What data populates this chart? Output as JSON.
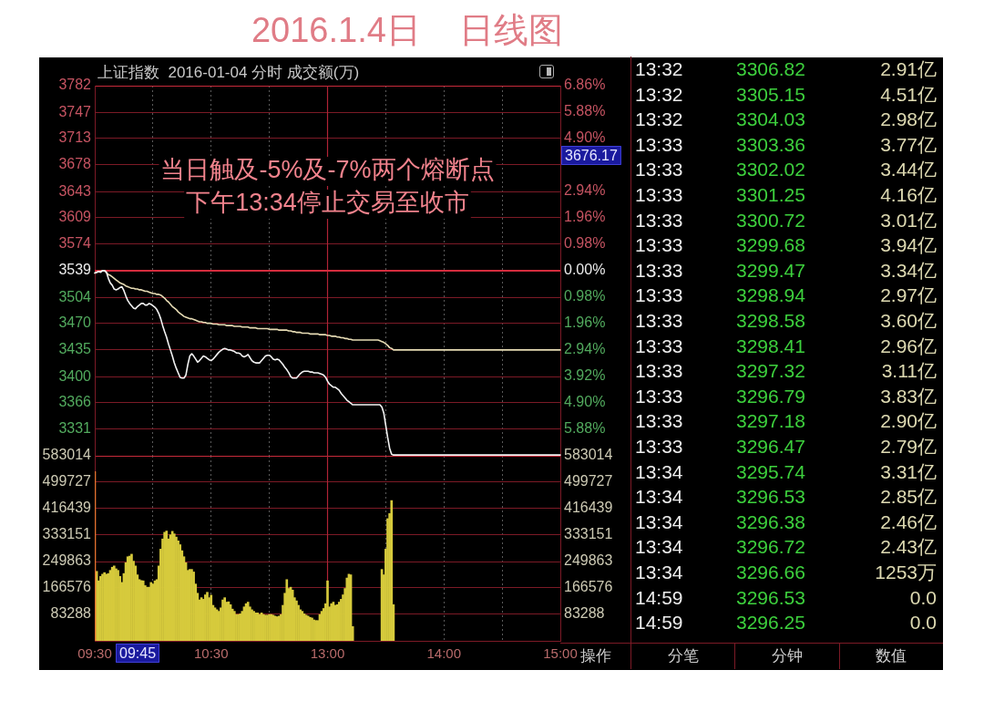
{
  "chart_data": [
    {
      "type": "line",
      "title": "2016.1.4日    日线图",
      "subtitle": "上证指数  2016-01-04 分时 成交额(万)",
      "categories": [
        "09:30",
        null,
        null,
        null,
        null,
        null,
        null,
        null,
        null,
        null,
        null,
        null,
        null,
        null,
        null,
        null,
        null,
        null,
        null,
        null,
        null,
        null,
        null,
        null,
        null,
        null,
        null,
        null,
        null,
        null,
        null,
        null,
        null,
        null,
        null,
        null,
        null,
        null,
        null,
        null,
        null,
        null,
        null,
        null,
        null,
        null,
        null,
        null,
        null,
        null,
        null,
        null,
        null,
        null,
        null,
        null,
        null,
        null,
        null,
        null,
        "10:30",
        null,
        null,
        null,
        null,
        null,
        null,
        null,
        null,
        null,
        null,
        null,
        null,
        null,
        null,
        null,
        null,
        null,
        null,
        null,
        null,
        null,
        null,
        null,
        null,
        null,
        null,
        null,
        null,
        null,
        null,
        null,
        null,
        null,
        null,
        null,
        null,
        null,
        null,
        null,
        null,
        null,
        null,
        null,
        null,
        null,
        null,
        null,
        null,
        null,
        null,
        null,
        null,
        null,
        null,
        null,
        null,
        null,
        null,
        null,
        "13:00",
        null,
        null,
        null,
        null,
        null,
        null,
        null,
        null,
        null,
        null,
        null,
        null,
        null,
        null,
        null,
        null,
        null,
        null,
        null,
        null,
        null,
        null,
        null,
        null,
        null,
        null,
        null,
        null,
        null,
        null,
        null,
        null,
        null,
        null,
        null,
        null,
        null,
        null,
        null,
        null,
        null,
        null,
        null,
        null,
        null,
        null,
        null,
        null,
        null,
        null,
        null,
        null,
        null,
        null,
        null,
        null,
        null,
        null,
        null,
        "14:00",
        null,
        null,
        null,
        null,
        null,
        null,
        null,
        null,
        null,
        null,
        null,
        null,
        null,
        null,
        null,
        null,
        null,
        null,
        null,
        null,
        null,
        null,
        null,
        null,
        null,
        null,
        null,
        null,
        null,
        null,
        null,
        null,
        null,
        null,
        null,
        null,
        null,
        null,
        null,
        null,
        null,
        null,
        null,
        null,
        null,
        null,
        null,
        null,
        null,
        null,
        null,
        null,
        null,
        null,
        null,
        null,
        null,
        null,
        null,
        "15:00"
      ],
      "ylim": [
        3296,
        3782
      ],
      "yticks": [
        3331,
        3366,
        3400,
        3435,
        3470,
        3504,
        3539,
        3574,
        3609,
        3643,
        3678,
        3713,
        3747,
        3782
      ],
      "y2lim": [
        -6.87,
        6.86
      ],
      "y2ticks": [
        {
          "value": -5.88,
          "label": "5.88%"
        },
        {
          "value": -4.9,
          "label": "4.90%"
        },
        {
          "value": -3.92,
          "label": "3.92%"
        },
        {
          "value": -2.94,
          "label": "2.94%"
        },
        {
          "value": -1.96,
          "label": "1.96%"
        },
        {
          "value": -0.98,
          "label": "0.98%"
        },
        {
          "value": 0,
          "label": "0.00%"
        },
        {
          "value": 0.98,
          "label": "0.98%"
        },
        {
          "value": 1.96,
          "label": "1.96%"
        },
        {
          "value": 2.94,
          "label": "2.94%"
        },
        {
          "value": 3.92,
          "label": null
        },
        {
          "value": 4.9,
          "label": "4.90%"
        },
        {
          "value": 5.88,
          "label": "5.88%"
        },
        {
          "value": 6.86,
          "label": "6.86%"
        }
      ],
      "series": [
        {
          "color": "#f2f2f2",
          "values": [
            3536,
            3537,
            3538,
            3537,
            3539,
            3539,
            3537,
            3529,
            3523,
            3520,
            3515,
            3514,
            3515,
            3517,
            3518,
            3513,
            3506,
            3500,
            3496,
            3493,
            3490,
            3489,
            3492,
            3494,
            3496,
            3496,
            3494,
            3494,
            3496,
            3495,
            3493,
            3491,
            3488,
            3483,
            3476,
            3467,
            3459,
            3452,
            3443,
            3435,
            3427,
            3418,
            3411,
            3405,
            3399,
            3398,
            3398,
            3402,
            3416,
            3427,
            3430,
            3427,
            3423,
            3419,
            3421,
            3424,
            3427,
            3426,
            3424,
            3422,
            3421,
            3423,
            3426,
            3429,
            3432,
            3434,
            3436,
            3437,
            3436,
            3435,
            3435,
            3434,
            3433,
            3431,
            3431,
            3430,
            3427,
            3426,
            3427,
            3429,
            3425,
            3421,
            3419,
            3418,
            3418,
            3418,
            3421,
            3424,
            3427,
            3428,
            3428,
            3426,
            3423,
            3422,
            3423,
            3422,
            3419,
            3416,
            3412,
            3409,
            3405,
            3400,
            3398,
            3398,
            3398,
            3401,
            3404,
            3406,
            3407,
            3407,
            3407,
            3406,
            3406,
            3405,
            3405,
            3405,
            3404,
            3403,
            3402,
            3399,
            3394,
            3390,
            3388,
            3386,
            3386,
            3384,
            3382,
            3378,
            3375,
            3372,
            3369,
            3367,
            3365,
            3363,
            3363,
            3363,
            3363,
            3363,
            3363,
            3363,
            3363,
            3363,
            3363,
            3363,
            3363,
            3363,
            3363,
            3363,
            3360,
            3352,
            3336,
            3320,
            3306,
            3298,
            3297,
            3297,
            3297,
            3297,
            3297,
            3297,
            3297,
            3297,
            3297,
            3297,
            3297,
            3297,
            3297,
            3297,
            3297,
            3297,
            3297,
            3297,
            3297,
            3297,
            3297,
            3297,
            3297,
            3297,
            3297,
            3297,
            3297,
            3297,
            3297,
            3297,
            3297,
            3297,
            3297,
            3297,
            3297,
            3297,
            3297,
            3297,
            3297,
            3297,
            3297,
            3297,
            3297,
            3297,
            3297,
            3297,
            3297,
            3297,
            3297,
            3297,
            3297,
            3297,
            3297,
            3297,
            3297,
            3297,
            3297,
            3297,
            3297,
            3297,
            3297,
            3297,
            3297,
            3297,
            3297,
            3297,
            3297,
            3297,
            3297,
            3297,
            3297,
            3297,
            3297,
            3297,
            3297,
            3297,
            3297,
            3297,
            3297,
            3297,
            3297,
            3297,
            3297,
            3297,
            3297,
            3297,
            3297
          ]
        },
        {
          "color": "#e6dbb4",
          "values": [
            3536,
            3537,
            3538,
            3538,
            3539,
            3539,
            3537,
            3534,
            3533,
            3531,
            3529,
            3527,
            3525,
            3523,
            3522,
            3521,
            3519,
            3518,
            3517,
            3516,
            3516,
            3515,
            3515,
            3514,
            3514,
            3513,
            3512,
            3512,
            3511,
            3510,
            3509,
            3509,
            3508,
            3508,
            3507,
            3505,
            3503,
            3500,
            3498,
            3495,
            3492,
            3490,
            3488,
            3485,
            3483,
            3481,
            3479,
            3478,
            3477,
            3476,
            3476,
            3475,
            3474,
            3473,
            3472,
            3472,
            3471,
            3471,
            3470,
            3470,
            3470,
            3469,
            3469,
            3469,
            3468,
            3468,
            3468,
            3468,
            3467,
            3467,
            3467,
            3467,
            3466,
            3466,
            3466,
            3466,
            3465,
            3465,
            3465,
            3465,
            3464,
            3464,
            3464,
            3464,
            3463,
            3463,
            3463,
            3463,
            3463,
            3463,
            3462,
            3462,
            3462,
            3462,
            3462,
            3461,
            3461,
            3461,
            3461,
            3461,
            3460,
            3460,
            3459,
            3459,
            3458,
            3458,
            3458,
            3457,
            3457,
            3457,
            3457,
            3456,
            3456,
            3456,
            3456,
            3456,
            3455,
            3455,
            3455,
            3455,
            3454,
            3454,
            3453,
            3453,
            3453,
            3452,
            3452,
            3451,
            3451,
            3450,
            3450,
            3449,
            3449,
            3448,
            3448,
            3448,
            3448,
            3448,
            3448,
            3448,
            3448,
            3448,
            3448,
            3448,
            3448,
            3448,
            3448,
            3447,
            3446,
            3445,
            3443,
            3441,
            3438,
            3437,
            3435,
            3435,
            3435,
            3435,
            3435,
            3435,
            3435,
            3435,
            3435,
            3435,
            3435,
            3435,
            3435,
            3435,
            3435,
            3435,
            3435,
            3435,
            3435,
            3435,
            3435,
            3435,
            3435,
            3435,
            3435,
            3435,
            3435,
            3435,
            3435,
            3435,
            3435,
            3435,
            3435,
            3435,
            3435,
            3435,
            3435,
            3435,
            3435,
            3435,
            3435,
            3435,
            3435,
            3435,
            3435,
            3435,
            3435,
            3435,
            3435,
            3435,
            3435,
            3435,
            3435,
            3435,
            3435,
            3435,
            3435,
            3435,
            3435,
            3435,
            3435,
            3435,
            3435,
            3435,
            3435,
            3435,
            3435,
            3435,
            3435,
            3435,
            3435,
            3435,
            3435,
            3435,
            3435,
            3435,
            3435,
            3435,
            3435,
            3435,
            3435,
            3435,
            3435,
            3435,
            3435,
            3435,
            3435
          ]
        }
      ],
      "grid": true,
      "tick_labels": "y",
      "ref_lines": [
        {
          "axis": "x",
          "value": "13:00",
          "color": "#b02436"
        },
        {
          "axis": "y",
          "value": 3539,
          "color": "#d42c3e"
        }
      ],
      "annotations": [
        "当日触及-5%及-7%两个熔断点",
        "下午13:34停止交易至收市",
        "3676.17"
      ]
    },
    {
      "type": "bar",
      "categories": [
        "09:30",
        null,
        null,
        null,
        null,
        null,
        null,
        null,
        null,
        null,
        null,
        null,
        null,
        null,
        null,
        null,
        null,
        null,
        null,
        null,
        null,
        null,
        null,
        null,
        null,
        null,
        null,
        null,
        null,
        null,
        null,
        null,
        null,
        null,
        null,
        null,
        null,
        null,
        null,
        null,
        null,
        null,
        null,
        null,
        null,
        null,
        null,
        null,
        null,
        null,
        null,
        null,
        null,
        null,
        null,
        null,
        null,
        null,
        null,
        null,
        "10:30",
        null,
        null,
        null,
        null,
        null,
        null,
        null,
        null,
        null,
        null,
        null,
        null,
        null,
        null,
        null,
        null,
        null,
        null,
        null,
        null,
        null,
        null,
        null,
        null,
        null,
        null,
        null,
        null,
        null,
        null,
        null,
        null,
        null,
        null,
        null,
        null,
        null,
        null,
        null,
        null,
        null,
        null,
        null,
        null,
        null,
        null,
        null,
        null,
        null,
        null,
        null,
        null,
        null,
        null,
        null,
        null,
        null,
        null,
        null,
        "13:00",
        null,
        null,
        null,
        null,
        null,
        null,
        null,
        null,
        null,
        null,
        null,
        null,
        null,
        null,
        null,
        null,
        null,
        null,
        null,
        null,
        null,
        null,
        null,
        null,
        null,
        null,
        null,
        null,
        null,
        null,
        null,
        null,
        null,
        null,
        null,
        null,
        null,
        null,
        null,
        null,
        null,
        null,
        null,
        null,
        null,
        null,
        null,
        null,
        null,
        null,
        null,
        null,
        null,
        null,
        null,
        null,
        null,
        null,
        null,
        "14:00",
        null,
        null,
        null,
        null,
        null,
        null,
        null,
        null,
        null,
        null,
        null,
        null,
        null,
        null,
        null,
        null,
        null,
        null,
        null,
        null,
        null,
        null,
        null,
        null,
        null,
        null,
        null,
        null,
        null,
        null,
        null,
        null,
        null,
        null,
        null,
        null,
        null,
        null,
        null,
        null,
        null,
        null,
        null,
        null,
        null,
        null,
        null,
        null,
        null,
        null,
        null,
        null,
        null,
        null,
        null,
        null,
        null,
        null,
        null,
        "15:00"
      ],
      "ylim": [
        0,
        583014
      ],
      "yticks": [
        83288,
        166576,
        249863,
        333151,
        416439,
        499727,
        583014
      ],
      "y2lim": [
        0,
        583014
      ],
      "y2ticks": [
        83288,
        166576,
        249863,
        333151,
        416439,
        499727,
        583014
      ],
      "series": [
        {
          "color": "#e2702e",
          "values": [
            533000,
            null,
            null,
            null,
            null,
            null,
            null,
            null,
            null,
            null,
            null,
            null,
            null,
            null,
            null,
            null,
            null,
            null,
            null,
            null,
            null,
            null,
            null,
            null,
            null,
            null,
            null,
            null,
            null,
            null,
            null,
            null,
            null,
            null,
            null,
            null,
            null,
            null,
            null,
            null,
            null,
            null,
            null,
            null,
            null,
            null,
            null,
            null,
            null,
            null,
            null,
            null,
            null,
            null,
            null,
            null,
            null,
            null,
            null,
            null,
            null,
            null,
            null,
            null,
            null,
            null,
            null,
            null,
            null,
            null,
            null,
            null,
            null,
            null,
            null,
            null,
            null,
            null,
            null,
            null,
            null,
            null,
            null,
            null,
            null,
            null,
            null,
            null,
            null,
            null,
            null,
            null,
            null,
            null,
            null,
            null,
            null,
            null,
            null,
            null,
            null,
            null,
            null,
            null,
            null,
            null,
            null,
            null,
            null,
            null,
            null,
            null,
            null,
            null,
            null,
            null,
            null,
            null,
            null,
            null,
            null,
            null,
            null,
            null,
            null,
            null,
            null,
            null,
            null,
            null,
            null,
            null,
            null,
            null,
            null,
            null,
            null,
            null,
            null,
            null,
            null,
            null,
            null,
            null,
            null,
            null,
            null,
            null,
            null,
            null,
            null,
            null,
            null,
            null,
            null,
            null,
            null,
            null,
            null,
            null,
            null,
            null,
            null,
            null,
            null,
            null,
            null,
            null,
            null,
            null,
            null,
            null,
            null,
            null,
            null,
            null,
            null,
            null,
            null,
            null,
            null,
            null,
            null,
            null,
            null,
            null,
            null,
            null,
            null,
            null,
            null,
            null,
            null,
            null,
            null,
            null,
            null,
            null,
            null,
            null,
            null,
            null,
            null,
            null,
            null,
            null,
            null,
            null,
            null,
            null,
            null,
            null,
            null,
            null,
            null,
            null,
            null,
            null,
            null,
            null,
            null,
            null,
            null,
            null,
            null,
            null,
            null,
            null,
            null,
            null,
            null,
            null,
            null,
            null,
            null,
            null,
            null,
            null,
            null,
            null,
            null
          ]
        },
        {
          "color": "#d6ca3c",
          "values": [
            null,
            219000,
            189000,
            203000,
            210000,
            215000,
            210000,
            212000,
            222000,
            232000,
            236000,
            227000,
            222000,
            203000,
            184000,
            212000,
            246000,
            265000,
            267000,
            273000,
            251000,
            236000,
            208000,
            193000,
            190000,
            189000,
            174000,
            169000,
            169000,
            184000,
            179000,
            189000,
            193000,
            236000,
            289000,
            321000,
            342000,
            346000,
            321000,
            334000,
            345000,
            337000,
            327000,
            315000,
            303000,
            284000,
            265000,
            246000,
            222000,
            225000,
            225000,
            217000,
            179000,
            150000,
            129000,
            136000,
            131000,
            145000,
            153000,
            136000,
            144000,
            112000,
            104000,
            98000,
            93000,
            104000,
            129000,
            136000,
            122000,
            123000,
            114000,
            100000,
            93000,
            83000,
            83000,
            85000,
            93000,
            107000,
            117000,
            122000,
            107000,
            98000,
            93000,
            88000,
            88000,
            83000,
            88000,
            83000,
            81000,
            81000,
            83000,
            83000,
            81000,
            78000,
            76000,
            78000,
            83000,
            112000,
            150000,
            193000,
            165000,
            169000,
            160000,
            136000,
            126000,
            112000,
            98000,
            93000,
            85000,
            81000,
            78000,
            74000,
            72000,
            66000,
            64000,
            64000,
            83000,
            93000,
            102000,
            117000,
            189000,
            107000,
            117000,
            122000,
            112000,
            114000,
            122000,
            131000,
            145000,
            165000,
            198000,
            210000,
            208000,
            45000,
            null,
            null,
            null,
            null,
            null,
            null,
            null,
            null,
            null,
            null,
            null,
            null,
            null,
            null,
            225000,
            208000,
            289000,
            385000,
            401000,
            442000,
            114000,
            null,
            null,
            null,
            null,
            null,
            null,
            null,
            null,
            null,
            null,
            null,
            null,
            null,
            null,
            null,
            null,
            null,
            null,
            null,
            null,
            null,
            null,
            null,
            null,
            null,
            null,
            null,
            null,
            null,
            null,
            null,
            null,
            null,
            null,
            null,
            null,
            null,
            null,
            null,
            null,
            null,
            null,
            null,
            null,
            null,
            null,
            null,
            null,
            null,
            null,
            null,
            null,
            null,
            null,
            null,
            null,
            null,
            null,
            null,
            null,
            null,
            null,
            null,
            null,
            null,
            null,
            null,
            null,
            null,
            null,
            null,
            null,
            null,
            null,
            null,
            null,
            null,
            null,
            null,
            null,
            null,
            null,
            null,
            null,
            null,
            null
          ]
        }
      ],
      "grid": true,
      "ref_lines": [
        {
          "axis": "x",
          "value": "13:00",
          "color": "#b02436"
        }
      ],
      "annotations": [
        "09:45"
      ]
    },
    {
      "type": "other",
      "data_labels": true,
      "color": "#3dd03d",
      "categories": [
        "13:32",
        "13:32",
        "13:32",
        "13:33",
        "13:33",
        "13:33",
        "13:33",
        "13:33",
        "13:33",
        "13:33",
        "13:33",
        "13:33",
        "13:33",
        "13:33",
        "13:33",
        "13:33",
        "13:34",
        "13:34",
        "13:34",
        "13:34",
        "13:34",
        "14:59",
        "14:59"
      ],
      "values": [
        3306.82,
        3305.15,
        3304.03,
        3303.36,
        3302.02,
        3301.25,
        3300.72,
        3299.68,
        3299.47,
        3298.94,
        3298.58,
        3298.41,
        3297.32,
        3296.79,
        3297.18,
        3296.47,
        3295.74,
        3296.53,
        3296.38,
        3296.72,
        3296.66,
        3296.53,
        3296.25
      ],
      "annotations": [
        "2.91亿",
        "4.51亿",
        "2.98亿",
        "3.77亿",
        "3.44亿",
        "4.16亿",
        "3.01亿",
        "3.94亿",
        "3.34亿",
        "2.97亿",
        "3.60亿",
        "2.96亿",
        "3.11亿",
        "3.83亿",
        "2.90亿",
        "2.79亿",
        "3.31亿",
        "2.85亿",
        "2.46亿",
        "2.43亿",
        "1253万",
        "0.0",
        "0.0",
        "操作",
        "分笔",
        "分钟",
        "数值"
      ]
    }
  ]
}
